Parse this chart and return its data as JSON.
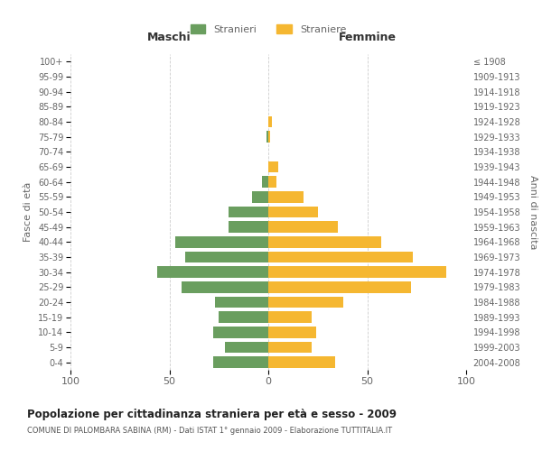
{
  "age_groups": [
    "100+",
    "95-99",
    "90-94",
    "85-89",
    "80-84",
    "75-79",
    "70-74",
    "65-69",
    "60-64",
    "55-59",
    "50-54",
    "45-49",
    "40-44",
    "35-39",
    "30-34",
    "25-29",
    "20-24",
    "15-19",
    "10-14",
    "5-9",
    "0-4"
  ],
  "birth_years": [
    "≤ 1908",
    "1909-1913",
    "1914-1918",
    "1919-1923",
    "1924-1928",
    "1929-1933",
    "1934-1938",
    "1939-1943",
    "1944-1948",
    "1949-1953",
    "1954-1958",
    "1959-1963",
    "1964-1968",
    "1969-1973",
    "1974-1978",
    "1979-1983",
    "1984-1988",
    "1989-1993",
    "1994-1998",
    "1999-2003",
    "2004-2008"
  ],
  "maschi": [
    0,
    0,
    0,
    0,
    0,
    1,
    0,
    0,
    3,
    8,
    20,
    20,
    47,
    42,
    56,
    44,
    27,
    25,
    28,
    22,
    28
  ],
  "femmine": [
    0,
    0,
    0,
    0,
    2,
    1,
    0,
    5,
    4,
    18,
    25,
    35,
    57,
    73,
    90,
    72,
    38,
    22,
    24,
    22,
    34
  ],
  "color_maschi": "#6a9e5f",
  "color_femmine": "#f5b731",
  "title": "Popolazione per cittadinanza straniera per età e sesso - 2009",
  "subtitle": "COMUNE DI PALOMBARA SABINA (RM) - Dati ISTAT 1° gennaio 2009 - Elaborazione TUTTITALIA.IT",
  "xlabel_left": "Maschi",
  "xlabel_right": "Femmine",
  "ylabel_left": "Fasce di età",
  "ylabel_right": "Anni di nascita",
  "xlim": 100,
  "legend_maschi": "Stranieri",
  "legend_femmine": "Straniere",
  "bg_color": "#ffffff",
  "grid_color": "#cccccc",
  "text_color": "#666666"
}
